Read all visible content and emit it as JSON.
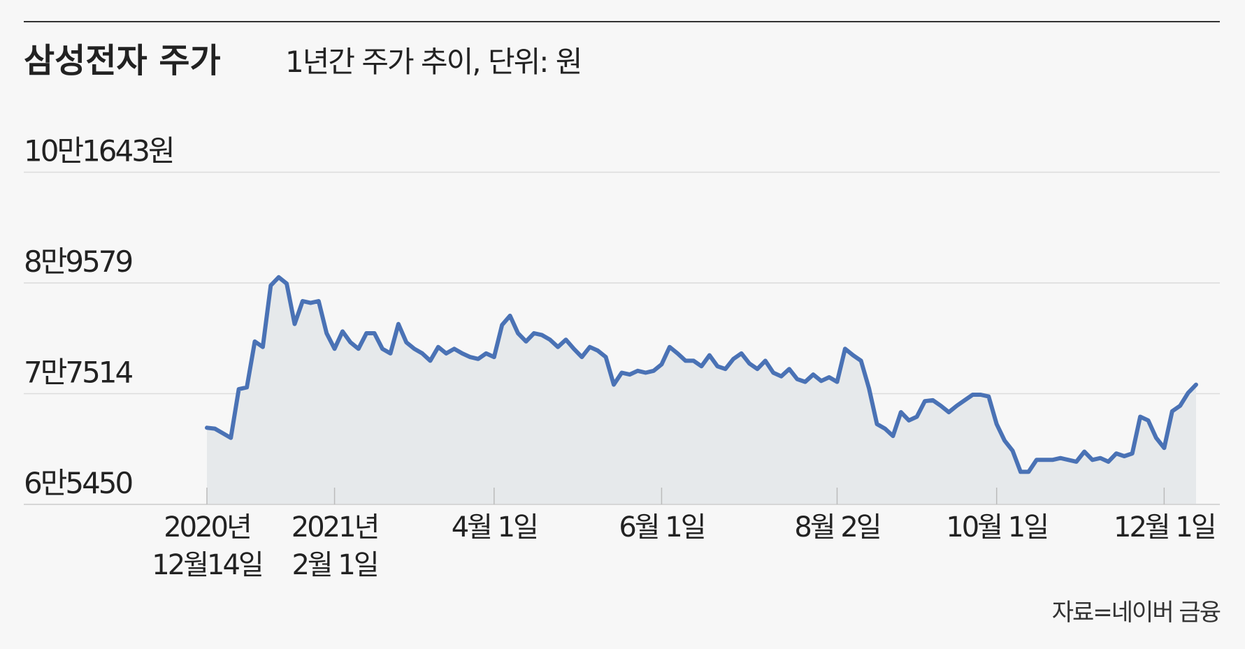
{
  "chart_data": {
    "type": "line",
    "title": "삼성전자 주가",
    "subtitle": "1년간 주가 추이, 단위: 원",
    "source": "자료=네이버 금융",
    "color": "#4a72b5",
    "fill_color": "#e6e9eb",
    "grid": true,
    "ylim": [
      65450,
      101643
    ],
    "yticks": [
      {
        "value": 65450,
        "label": "6만5450"
      },
      {
        "value": 77514,
        "label": "7만7514"
      },
      {
        "value": 89579,
        "label": "8만9579"
      },
      {
        "value": 101643,
        "label": "10만1643원"
      }
    ],
    "categories": [
      "2020년\n12월14일",
      null,
      null,
      null,
      null,
      null,
      null,
      null,
      null,
      null,
      null,
      null,
      null,
      null,
      null,
      null,
      "2021년\n2월 1일",
      null,
      null,
      null,
      null,
      null,
      null,
      null,
      null,
      null,
      null,
      null,
      null,
      null,
      null,
      null,
      null,
      null,
      null,
      null,
      "4월 1일",
      null,
      null,
      null,
      null,
      null,
      null,
      null,
      null,
      null,
      null,
      null,
      null,
      null,
      null,
      null,
      null,
      null,
      null,
      null,
      null,
      "6월 1일",
      null,
      null,
      null,
      null,
      null,
      null,
      null,
      null,
      null,
      null,
      null,
      null,
      null,
      null,
      null,
      null,
      null,
      null,
      null,
      null,
      null,
      "8월 2일",
      null,
      null,
      null,
      null,
      null,
      null,
      null,
      null,
      null,
      null,
      null,
      null,
      null,
      null,
      null,
      null,
      null,
      null,
      null,
      "10월 1일",
      null,
      null,
      null,
      null,
      null,
      null,
      null,
      null,
      null,
      null,
      null,
      null,
      null,
      null,
      null,
      null,
      null,
      null,
      null,
      null,
      "12월 1일",
      null,
      null,
      null,
      null
    ],
    "values": [
      73800,
      73700,
      73200,
      72700,
      78000,
      78200,
      83200,
      82600,
      89300,
      90200,
      89500,
      85100,
      87600,
      87400,
      87600,
      84100,
      82400,
      84300,
      83100,
      82400,
      84100,
      84100,
      82400,
      81900,
      85100,
      83100,
      82400,
      81900,
      81100,
      82600,
      81900,
      82400,
      81900,
      81500,
      81300,
      81900,
      81500,
      85000,
      86000,
      84100,
      83200,
      84100,
      83900,
      83400,
      82600,
      83400,
      82400,
      81500,
      82600,
      82200,
      81500,
      78500,
      79800,
      79600,
      80000,
      79800,
      80000,
      80700,
      82600,
      81900,
      81100,
      81100,
      80500,
      81700,
      80500,
      80200,
      81300,
      81900,
      80800,
      80200,
      81100,
      79800,
      79400,
      80200,
      79100,
      78800,
      79600,
      78900,
      79300,
      78800,
      82400,
      81700,
      81100,
      78100,
      74200,
      73700,
      72900,
      75500,
      74600,
      75000,
      76700,
      76800,
      76200,
      75500,
      76200,
      76800,
      77400,
      77400,
      77200,
      74200,
      72400,
      71300,
      69000,
      69000,
      70300,
      70300,
      70300,
      70500,
      70300,
      70100,
      71200,
      70300,
      70500,
      70100,
      71000,
      70700,
      71000,
      75000,
      74600,
      72700,
      71600,
      75600,
      76200,
      77600,
      78500
    ]
  }
}
